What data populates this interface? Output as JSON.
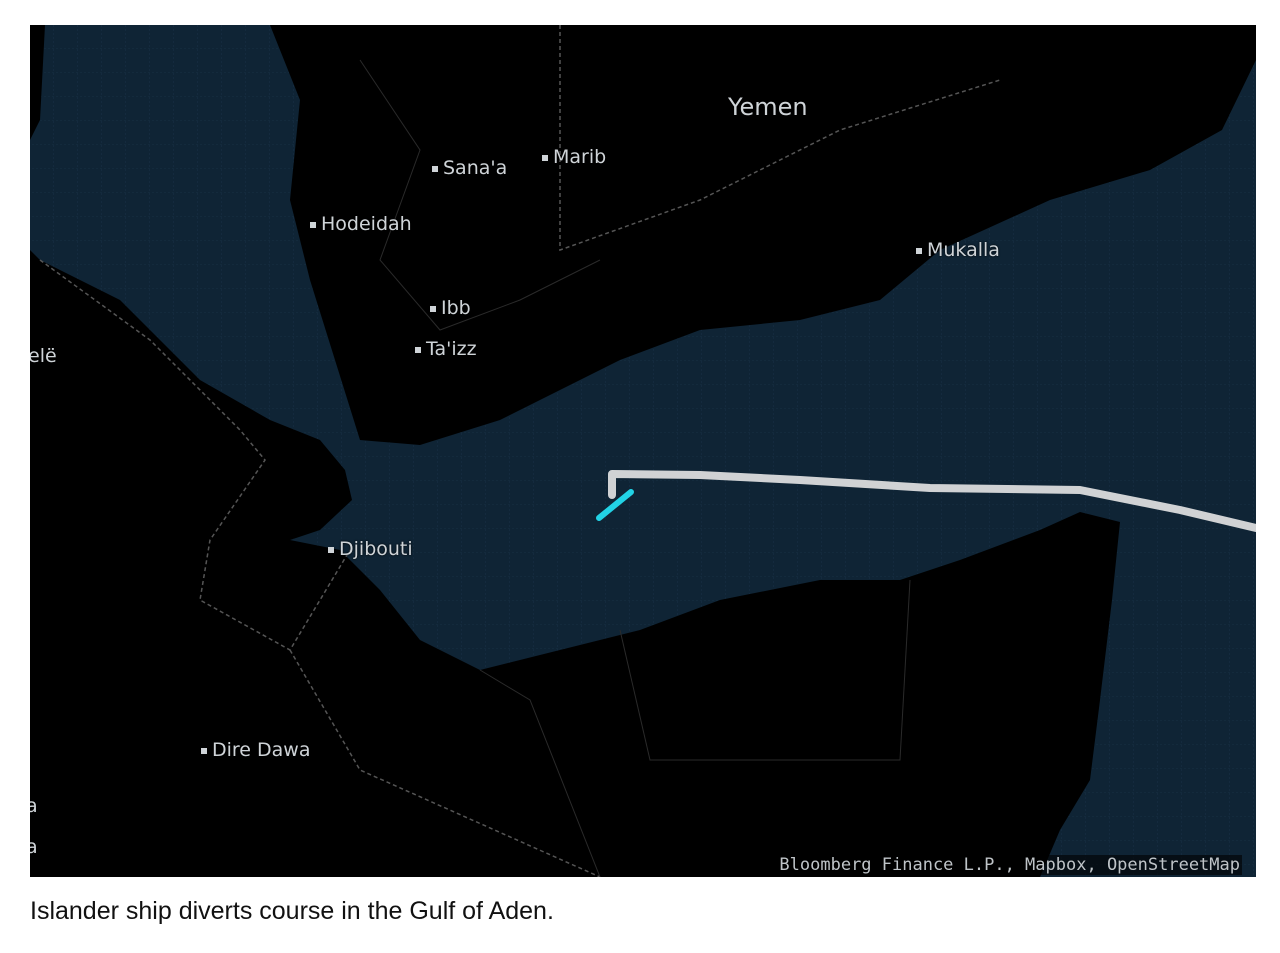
{
  "map": {
    "country_labels": [
      {
        "name": "Yemen"
      }
    ],
    "cities": [
      {
        "name": "Sana'a"
      },
      {
        "name": "Marib"
      },
      {
        "name": "Hodeidah"
      },
      {
        "name": "Mukalla"
      },
      {
        "name": "Ibb"
      },
      {
        "name": "Ta'izz"
      },
      {
        "name": "Djibouti"
      },
      {
        "name": "Dire Dawa"
      }
    ],
    "edge_labels": [
      "elë",
      "a",
      "a"
    ],
    "attribution": "Bloomberg Finance L.P., Mapbox, OpenStreetMap",
    "colors": {
      "sea": "#0f2435",
      "land": "#000000",
      "track": "#e6e6e6",
      "ship": "#22d3e6"
    }
  },
  "caption": "Islander ship diverts course in the Gulf of Aden."
}
